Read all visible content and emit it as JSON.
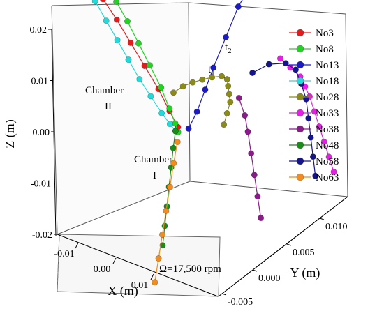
{
  "chart_data": {
    "type": "scatter",
    "projection": "3d",
    "xlabel": "X (m)",
    "ylabel": "Y (m)",
    "zlabel": "Z (m)",
    "xlim": [
      -0.015,
      0.015
    ],
    "ylim": [
      -0.005,
      0.01
    ],
    "zlim": [
      -0.02,
      0.02
    ],
    "x_ticks": [
      "-0.01",
      "0.00",
      "0.01"
    ],
    "y_ticks": [
      "-0.005",
      "0.000",
      "0.005",
      "0.010"
    ],
    "z_ticks": [
      "-0.02",
      "-0.01",
      "0.00",
      "0.01",
      "0.02"
    ],
    "legend_position": "right",
    "annotations": {
      "chamber2": [
        "Chamber",
        "II"
      ],
      "chamber1": [
        "Chamber",
        "I"
      ],
      "t1": "t1",
      "t2": "t2",
      "omega": "Ω=17,500 rpm"
    },
    "series": [
      {
        "name": "No3",
        "color": "#e8191b",
        "x": [
          -0.0135,
          -0.011,
          -0.0085,
          -0.006,
          -0.0035,
          -0.0015,
          0.0
        ],
        "y": [
          0.0,
          0.0,
          0.0,
          0.0,
          0.0,
          0.0,
          0.0
        ],
        "z": [
          0.02,
          0.017,
          0.0135,
          0.01,
          0.0065,
          0.003,
          0.0005
        ]
      },
      {
        "name": "No8",
        "color": "#22d322",
        "x": [
          -0.011,
          -0.009,
          -0.007,
          -0.005,
          -0.003,
          -0.0015,
          -0.0005,
          0.0
        ],
        "y": [
          0.0,
          0.0,
          0.0,
          0.0,
          0.0,
          0.0,
          0.0,
          0.0
        ],
        "z": [
          0.0205,
          0.0175,
          0.014,
          0.0105,
          0.007,
          0.0035,
          0.001,
          -0.0005
        ]
      },
      {
        "name": "No13",
        "color": "#1a1ac8",
        "x": [
          0.002,
          0.002,
          0.002,
          0.002,
          0.002,
          0.002,
          0.002
        ],
        "y": [
          0.008,
          0.006,
          0.0045,
          0.003,
          0.002,
          0.001,
          0.0
        ],
        "z": [
          0.02,
          0.017,
          0.013,
          0.009,
          0.006,
          0.003,
          0.001
        ]
      },
      {
        "name": "No18",
        "color": "#22dada",
        "x": [
          -0.015,
          -0.013,
          -0.011,
          -0.009,
          -0.007,
          -0.005,
          -0.003,
          -0.0015,
          -0.0005
        ],
        "y": [
          0.0,
          0.0,
          0.0,
          0.0,
          0.0,
          0.0,
          0.0,
          0.0,
          0.0
        ],
        "z": [
          0.019,
          0.016,
          0.013,
          0.01,
          0.007,
          0.0045,
          0.002,
          0.0005,
          -0.0005
        ]
      },
      {
        "name": "No28",
        "color": "#8b8b17",
        "x": [
          -0.004,
          -0.003,
          -0.002,
          -0.001,
          0.0,
          0.001,
          0.002,
          0.003,
          0.004,
          0.005,
          0.006,
          0.007
        ],
        "y": [
          0.002,
          0.0025,
          0.003,
          0.0035,
          0.004,
          0.0045,
          0.0045,
          0.004,
          0.0035,
          0.003,
          0.002,
          0.001
        ],
        "z": [
          0.003,
          0.004,
          0.0045,
          0.0048,
          0.005,
          0.005,
          0.0048,
          0.0045,
          0.004,
          0.0035,
          0.003,
          0.0025
        ]
      },
      {
        "name": "No33",
        "color": "#e81ee8",
        "x": [
          0.008,
          0.009,
          0.01,
          0.0105,
          0.011,
          0.0115,
          0.012,
          0.0125,
          0.013,
          0.0135
        ],
        "y": [
          0.007,
          0.0075,
          0.008,
          0.0082,
          0.0084,
          0.0086,
          0.0088,
          0.009,
          0.0092,
          0.0094
        ],
        "z": [
          0.008,
          0.006,
          0.004,
          0.002,
          0.0,
          -0.003,
          -0.006,
          -0.009,
          -0.012,
          -0.015
        ]
      },
      {
        "name": "No38",
        "color": "#8b1a8b",
        "x": [
          0.005,
          0.006,
          0.0065,
          0.007,
          0.0075,
          0.008,
          0.0085
        ],
        "y": [
          0.004,
          0.004,
          0.004,
          0.004,
          0.004,
          0.004,
          0.004
        ],
        "z": [
          0.003,
          0.0,
          -0.003,
          -0.007,
          -0.011,
          -0.015,
          -0.019
        ]
      },
      {
        "name": "No48",
        "color": "#1a8c1a",
        "x": [
          -0.0005,
          -0.001,
          -0.0015,
          -0.002,
          -0.0025,
          -0.003,
          -0.0035
        ],
        "y": [
          0.0,
          0.0,
          0.0,
          0.0,
          0.0,
          0.0,
          0.0
        ],
        "z": [
          -0.0005,
          -0.004,
          -0.008,
          -0.012,
          -0.016,
          -0.02,
          -0.024
        ]
      },
      {
        "name": "No58",
        "color": "#14148c",
        "x": [
          0.006,
          0.0075,
          0.009,
          0.01,
          0.0105,
          0.011,
          0.011,
          0.011,
          0.011,
          0.011
        ],
        "y": [
          0.005,
          0.006,
          0.007,
          0.0075,
          0.0078,
          0.008,
          0.0082,
          0.0084,
          0.0086,
          0.0088
        ],
        "z": [
          0.007,
          0.008,
          0.0075,
          0.006,
          0.003,
          0.0,
          -0.004,
          -0.008,
          -0.012,
          -0.016
        ]
      },
      {
        "name": "No63",
        "color": "#f28c1e",
        "x": [
          0.0015,
          0.0015,
          0.0015,
          0.0015,
          0.0015,
          0.0015,
          0.0015
        ],
        "y": [
          -0.001,
          -0.0015,
          -0.002,
          -0.0025,
          -0.003,
          -0.0035,
          -0.004
        ],
        "z": [
          -0.0005,
          -0.004,
          -0.008,
          -0.012,
          -0.016,
          -0.02,
          -0.024
        ]
      }
    ]
  }
}
